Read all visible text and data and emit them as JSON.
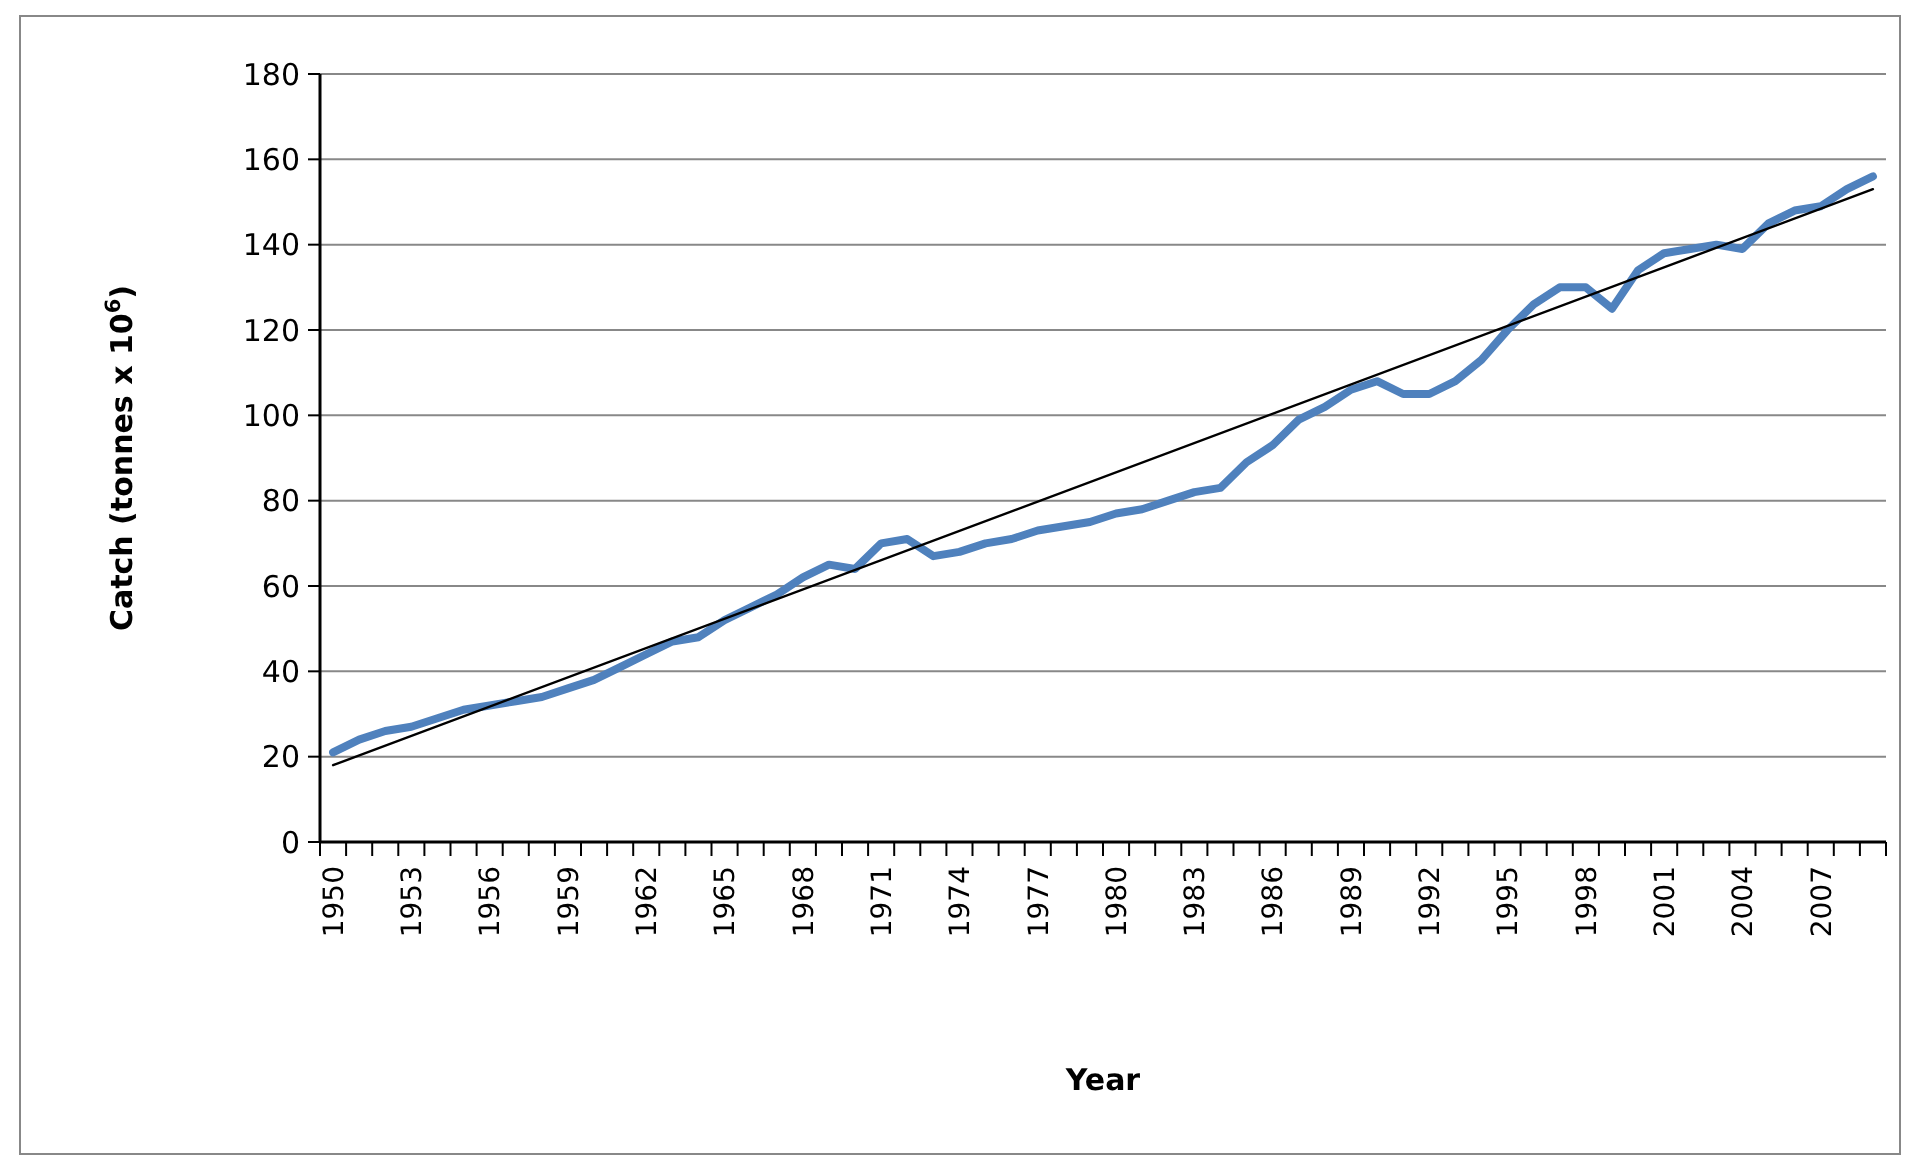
{
  "chart_data": {
    "type": "line",
    "xlabel": "Year",
    "ylabel": "Catch (tonnes x 10$^{6}$)",
    "categories": [
      "1950",
      null,
      null,
      "1953",
      null,
      null,
      "1956",
      null,
      null,
      "1959",
      null,
      null,
      "1962",
      null,
      null,
      "1965",
      null,
      null,
      "1968",
      null,
      null,
      "1971",
      null,
      null,
      "1974",
      null,
      null,
      "1977",
      null,
      null,
      "1980",
      null,
      null,
      "1983",
      null,
      null,
      "1986",
      null,
      null,
      "1989",
      null,
      null,
      "1992",
      null,
      null,
      "1995",
      null,
      null,
      "1998",
      null,
      null,
      "2001",
      null,
      null,
      "2004",
      null,
      null,
      "2007",
      null,
      null
    ],
    "series": [
      {
        "color": "#4f81bd",
        "values": [
          21,
          24,
          26,
          27,
          29,
          31,
          32,
          33,
          34,
          36,
          38,
          41,
          44,
          47,
          48,
          52,
          55,
          58,
          62,
          65,
          64,
          70,
          71,
          67,
          68,
          70,
          71,
          73,
          74,
          75,
          77,
          78,
          80,
          82,
          83,
          89,
          93,
          99,
          102,
          106,
          108,
          105,
          105,
          108,
          113,
          120,
          126,
          130,
          130,
          125,
          134,
          138,
          139,
          140,
          139,
          145,
          148,
          149,
          153,
          156
        ]
      },
      {
        "color": "#000000",
        "values": [
          18,
          null,
          null,
          null,
          null,
          null,
          null,
          null,
          null,
          null,
          null,
          null,
          null,
          null,
          null,
          null,
          null,
          null,
          null,
          null,
          null,
          null,
          null,
          null,
          null,
          null,
          null,
          null,
          null,
          null,
          null,
          null,
          null,
          null,
          null,
          null,
          null,
          null,
          null,
          null,
          null,
          null,
          null,
          null,
          null,
          null,
          null,
          null,
          null,
          null,
          null,
          null,
          null,
          null,
          null,
          null,
          null,
          null,
          null,
          153
        ]
      }
    ],
    "ylim": [
      0,
      180
    ],
    "yticks": [
      0,
      20,
      40,
      60,
      80,
      100,
      120,
      140,
      160,
      180
    ],
    "grid": "y"
  }
}
